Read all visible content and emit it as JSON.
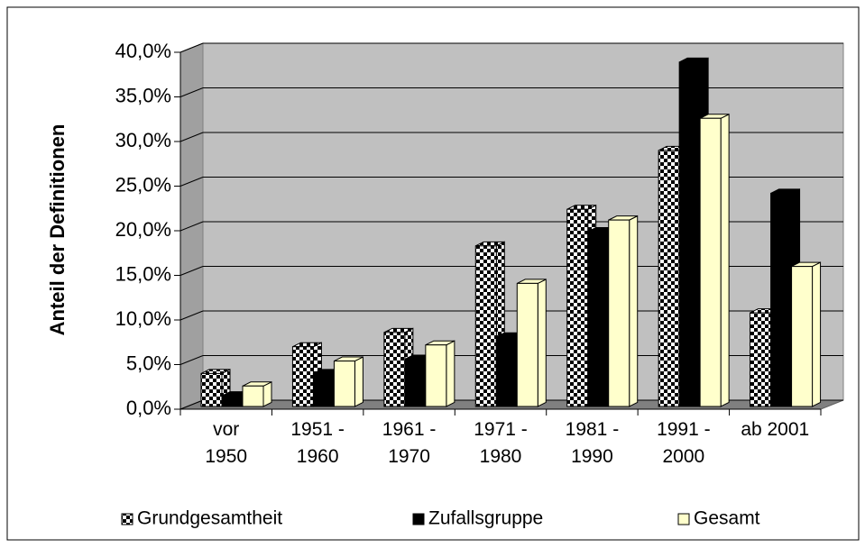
{
  "chart_data": {
    "type": "bar3d",
    "y_label": "Anteil der Definitionen",
    "categories": [
      "vor\n1950",
      "1951 -\n1960",
      "1961 -\n1970",
      "1971 -\n1980",
      "1981 -\n1990",
      "1991 -\n2000",
      "ab 2001"
    ],
    "series": [
      {
        "name": "Grundgesamtheit",
        "color": "checkered",
        "values": [
          4.0,
          7.0,
          8.6,
          18.3,
          22.4,
          29.0,
          10.8
        ]
      },
      {
        "name": "Zufallsgruppe",
        "color": "#000000",
        "values": [
          1.5,
          4.0,
          5.6,
          8.1,
          19.9,
          38.9,
          24.2
        ]
      },
      {
        "name": "Gesamt",
        "color": "#ffffcc",
        "values": [
          2.6,
          5.4,
          7.2,
          14.1,
          21.2,
          32.6,
          16.0
        ]
      }
    ],
    "ylim": [
      0,
      40
    ],
    "yticks": [
      {
        "value": 0,
        "label": "0,0%"
      },
      {
        "value": 5,
        "label": "5,0%"
      },
      {
        "value": 10,
        "label": "10,0%"
      },
      {
        "value": 15,
        "label": "15,0%"
      },
      {
        "value": 20,
        "label": "20,0%"
      },
      {
        "value": 25,
        "label": "25,0%"
      },
      {
        "value": 30,
        "label": "30,0%"
      },
      {
        "value": 35,
        "label": "35,0%"
      },
      {
        "value": 40,
        "label": "40,0%"
      }
    ],
    "grid": true,
    "legend": "bottom"
  }
}
